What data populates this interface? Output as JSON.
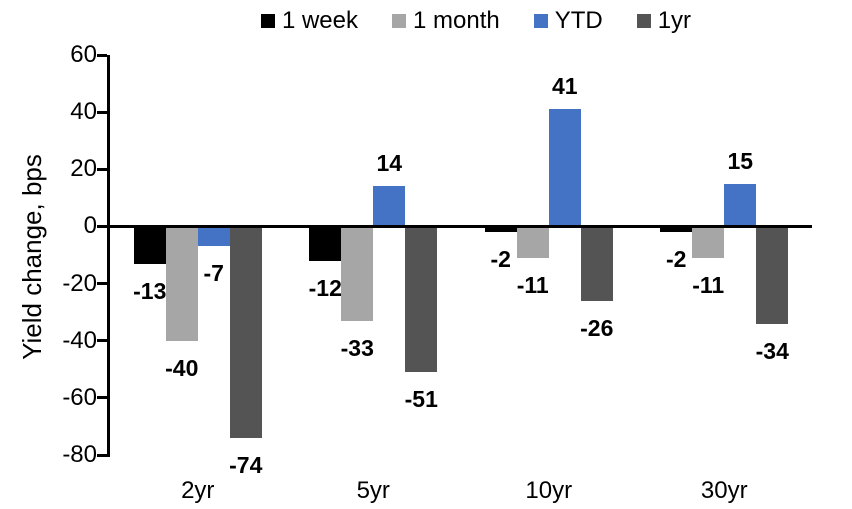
{
  "chart_data": {
    "type": "bar",
    "title": "",
    "ylabel": "Yield change, bps",
    "xlabel": "",
    "categories": [
      "2yr",
      "5yr",
      "10yr",
      "30yr"
    ],
    "series": [
      {
        "name": "1 week",
        "color": "#000000",
        "values": [
          -13,
          -12,
          -2,
          -2
        ]
      },
      {
        "name": "1 month",
        "color": "#a6a6a6",
        "values": [
          -40,
          -33,
          -11,
          -11
        ]
      },
      {
        "name": "YTD",
        "color": "#4472c4",
        "values": [
          -7,
          14,
          41,
          15
        ]
      },
      {
        "name": "1yr",
        "color": "#545454",
        "values": [
          -74,
          -51,
          -26,
          -34
        ]
      }
    ],
    "ylim": [
      -80,
      60
    ],
    "yticks": [
      60,
      40,
      20,
      0,
      -20,
      -40,
      -60,
      -80
    ],
    "grid": false,
    "legend_position": "top",
    "data_labels": true,
    "axis_color": "#000000",
    "background_color": "#ffffff"
  }
}
